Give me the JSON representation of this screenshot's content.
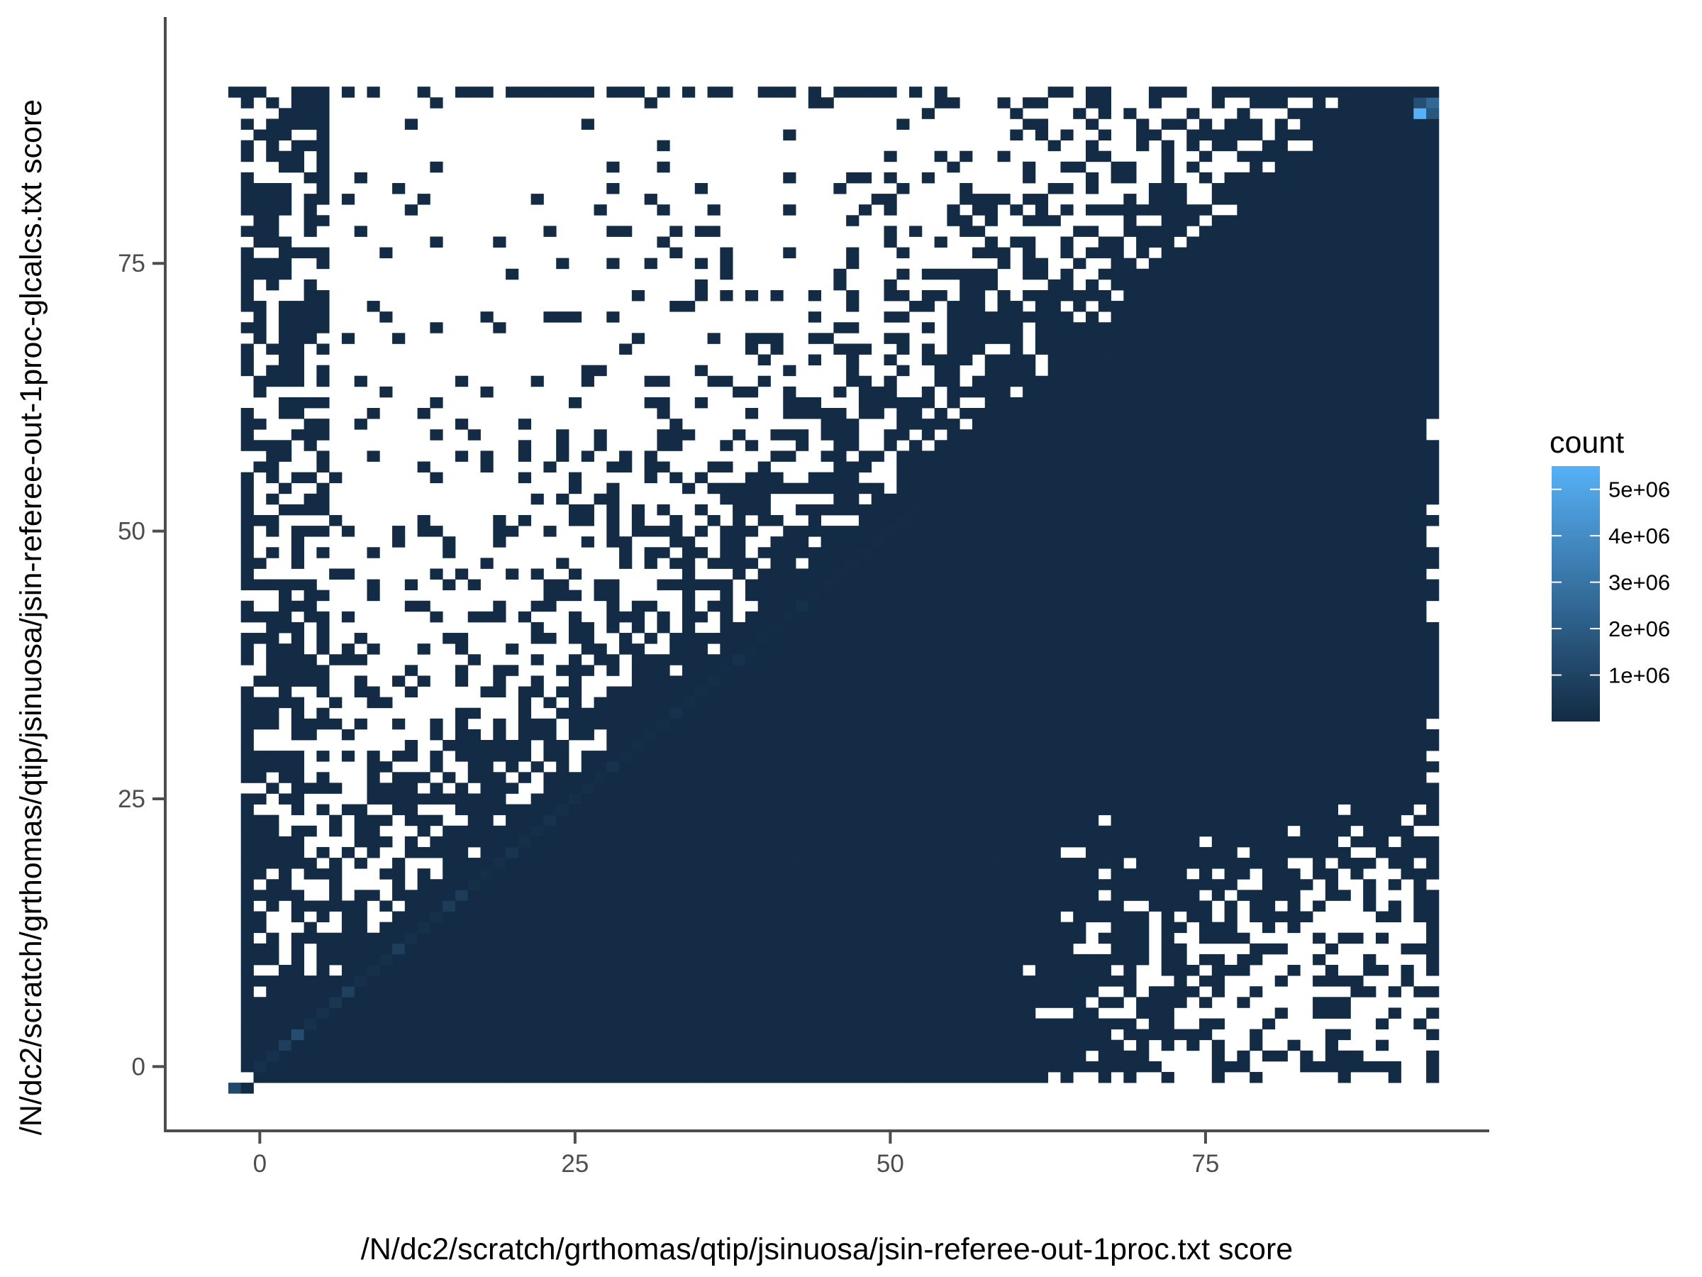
{
  "chart_data": {
    "type": "heatmap",
    "title": "",
    "xlabel": "/N/dc2/scratch/grthomas/qtip/jsinuosa/jsin-referee-out-1proc.txt score",
    "ylabel": "/N/dc2/scratch/grthomas/qtip/jsinuosa/jsin-referee-out-1proc-glcalcs.txt score",
    "xlim": [
      -7.5,
      97.5
    ],
    "ylim": [
      -6,
      98
    ],
    "x_ticks": [
      0,
      25,
      50,
      75
    ],
    "y_ticks": [
      0,
      25,
      50,
      75
    ],
    "x_tick_labels": [
      "0",
      "25",
      "50",
      "75"
    ],
    "y_tick_labels": [
      "0",
      "25",
      "50",
      "75"
    ],
    "grid": false,
    "legend": {
      "title": "count",
      "position": "right",
      "min": 0,
      "max": 5500000,
      "breaks": [
        1000000,
        2000000,
        3000000,
        4000000,
        5000000
      ],
      "labels": [
        "1e+06",
        "2e+06",
        "3e+06",
        "4e+06",
        "5e+06"
      ],
      "low_color": "#132b43",
      "high_color": "#56b1f7"
    },
    "bin_width": 1,
    "x_range": [
      -2,
      93
    ],
    "y_range": [
      -2,
      91
    ],
    "fill_description": "Lower-right triangle (y <= x) fully filled; upper-left triangle sparsely filled; lower-right corner sparse",
    "highlight_cells": [
      {
        "x": -2,
        "y": -2,
        "count": 1200000
      },
      {
        "x": 3,
        "y": 3,
        "count": 1400000
      },
      {
        "x": 2,
        "y": 2,
        "count": 800000
      },
      {
        "x": 7,
        "y": 7,
        "count": 900000
      },
      {
        "x": 6,
        "y": 6,
        "count": 500000
      },
      {
        "x": 11,
        "y": 11,
        "count": 800000
      },
      {
        "x": 15,
        "y": 15,
        "count": 700000
      },
      {
        "x": 16,
        "y": 16,
        "count": 700000
      },
      {
        "x": 20,
        "y": 20,
        "count": 400000
      },
      {
        "x": 23,
        "y": 23,
        "count": 300000
      },
      {
        "x": 28,
        "y": 28,
        "count": 300000
      },
      {
        "x": 33,
        "y": 33,
        "count": 250000
      },
      {
        "x": 38,
        "y": 38,
        "count": 250000
      },
      {
        "x": 43,
        "y": 43,
        "count": 200000
      },
      {
        "x": 92,
        "y": 89,
        "count": 5500000
      },
      {
        "x": 93,
        "y": 90,
        "count": 2500000
      },
      {
        "x": 92,
        "y": 90,
        "count": 1500000
      },
      {
        "x": 93,
        "y": 89,
        "count": 1800000
      }
    ]
  }
}
